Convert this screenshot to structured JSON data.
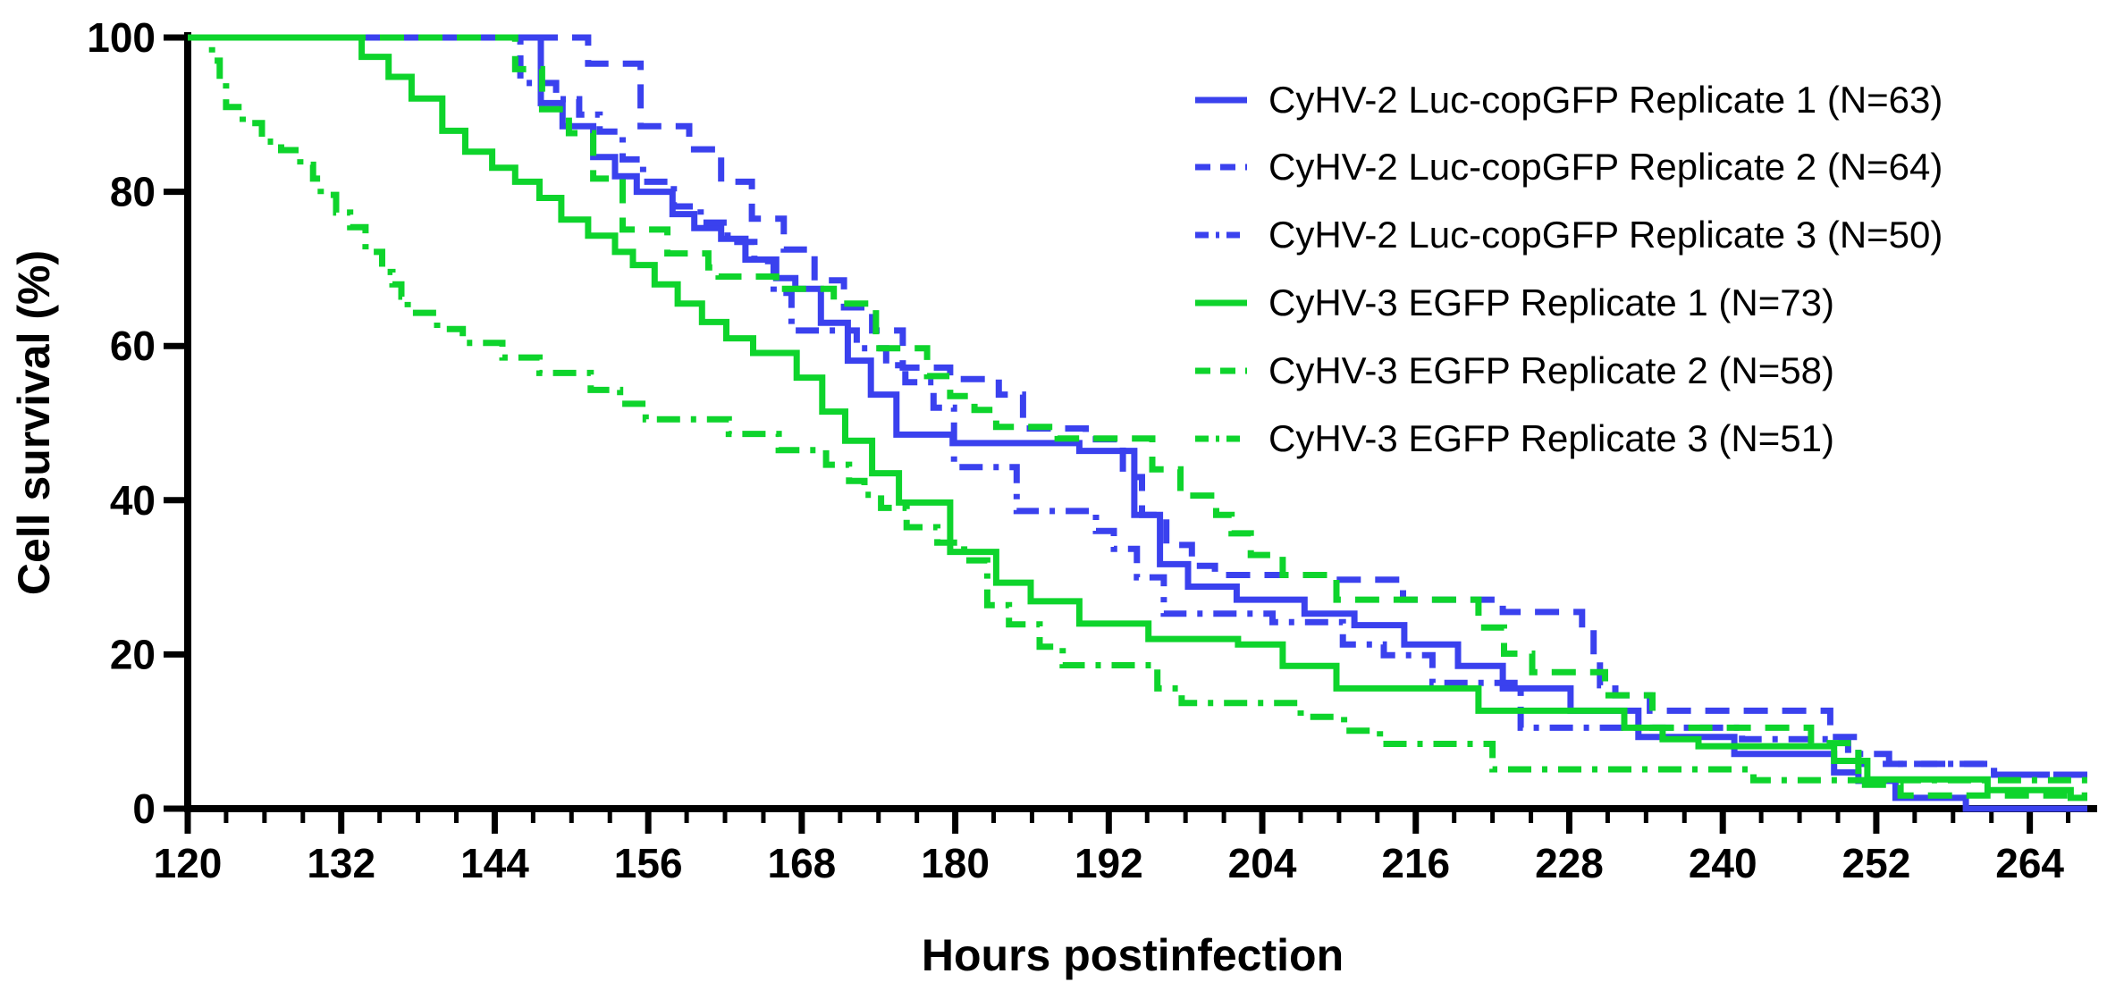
{
  "chart_data": {
    "type": "line",
    "variant": "kaplan_meier_step_survival",
    "title": "",
    "xlabel": "Hours postinfection",
    "ylabel": "Cell survival (%)",
    "x_range": [
      120,
      268.5
    ],
    "y_range": [
      0,
      100
    ],
    "x_ticks_major": [
      120,
      132,
      144,
      156,
      168,
      180,
      192,
      204,
      216,
      228,
      240,
      252,
      264
    ],
    "x_minor_tick_step": 3,
    "y_ticks": [
      0,
      20,
      40,
      60,
      80,
      100
    ],
    "grid": false,
    "legend_position": "inside-upper-right",
    "colors": {
      "cyhv2": "#3a41ee",
      "cyhv3": "#0ed42c",
      "axis": "#000000",
      "background": "#ffffff"
    },
    "series": [
      {
        "name": "CyHV-2 Luc-copGFP Replicate 1 (N=63)",
        "group": "CyHV-2 Luc-copGFP",
        "replicate": 1,
        "n": 63,
        "color_key": "cyhv2",
        "line_style": "solid",
        "points": [
          [
            120,
            100
          ],
          [
            147.6,
            91.5
          ],
          [
            149.3,
            88.5
          ],
          [
            151.7,
            84.5
          ],
          [
            153.4,
            82
          ],
          [
            155.1,
            80
          ],
          [
            157.9,
            77.1
          ],
          [
            159.6,
            75.3
          ],
          [
            161.7,
            73.9
          ],
          [
            163.6,
            71.2
          ],
          [
            166,
            68.8
          ],
          [
            167.5,
            67.4
          ],
          [
            169.5,
            63
          ],
          [
            171.6,
            58.1
          ],
          [
            173.4,
            53.7
          ],
          [
            175.4,
            48.5
          ],
          [
            179.8,
            47.4
          ],
          [
            189.7,
            46.4
          ],
          [
            194,
            38.1
          ],
          [
            196,
            31.7
          ],
          [
            198.2,
            28.8
          ],
          [
            202,
            27.1
          ],
          [
            207.3,
            25.3
          ],
          [
            211.2,
            23.8
          ],
          [
            215.1,
            21.3
          ],
          [
            219.3,
            18.5
          ],
          [
            222.8,
            15.6
          ],
          [
            228.1,
            12.7
          ],
          [
            233.4,
            9.3
          ],
          [
            240.9,
            7.1
          ],
          [
            248.7,
            4.7
          ],
          [
            250.6,
            3.6
          ],
          [
            253.5,
            1.4
          ],
          [
            259,
            0
          ],
          [
            268.5,
            0
          ]
        ]
      },
      {
        "name": "CyHV-2 Luc-copGFP Replicate 2 (N=64)",
        "group": "CyHV-2 Luc-copGFP",
        "replicate": 2,
        "n": 64,
        "color_key": "cyhv2",
        "line_style": "dashed",
        "points": [
          [
            120,
            100
          ],
          [
            151.3,
            96.6
          ],
          [
            155.4,
            88.5
          ],
          [
            159.2,
            85.5
          ],
          [
            161.7,
            81.3
          ],
          [
            164.1,
            76.5
          ],
          [
            166.6,
            72.5
          ],
          [
            169,
            68.5
          ],
          [
            171.3,
            65
          ],
          [
            173.5,
            62
          ],
          [
            175.9,
            57.2
          ],
          [
            179.6,
            55.7
          ],
          [
            183.4,
            53.7
          ],
          [
            185.3,
            49.3
          ],
          [
            190.2,
            47.9
          ],
          [
            193.1,
            43
          ],
          [
            194.6,
            38.1
          ],
          [
            196.5,
            34.2
          ],
          [
            198.5,
            31.5
          ],
          [
            200.3,
            30.3
          ],
          [
            209.8,
            29.7
          ],
          [
            215,
            27.1
          ],
          [
            222.8,
            25.5
          ],
          [
            229,
            23.9
          ],
          [
            229.9,
            19.8
          ],
          [
            230.4,
            16
          ],
          [
            231.6,
            14.7
          ],
          [
            234.3,
            12.7
          ],
          [
            248.4,
            9.3
          ],
          [
            250.6,
            5.8
          ],
          [
            261.2,
            4.4
          ],
          [
            268.5,
            4.4
          ]
        ]
      },
      {
        "name": "CyHV-2 Luc-copGFP Replicate 3 (N=50)",
        "group": "CyHV-2 Luc-copGFP",
        "replicate": 3,
        "n": 50,
        "color_key": "cyhv2",
        "line_style": "dashdot",
        "points": [
          [
            120,
            100
          ],
          [
            146,
            94.1
          ],
          [
            148.8,
            92
          ],
          [
            150.6,
            90
          ],
          [
            152.2,
            87.8
          ],
          [
            154,
            84.2
          ],
          [
            155.6,
            81.3
          ],
          [
            158,
            78.1
          ],
          [
            160.1,
            76
          ],
          [
            162.2,
            73.5
          ],
          [
            164.3,
            71
          ],
          [
            165.8,
            66.9
          ],
          [
            167.2,
            62
          ],
          [
            172.3,
            59.7
          ],
          [
            174.6,
            57.5
          ],
          [
            176.1,
            55.3
          ],
          [
            178.3,
            52
          ],
          [
            179.9,
            44.3
          ],
          [
            184.8,
            38.6
          ],
          [
            191,
            36
          ],
          [
            192.4,
            33.7
          ],
          [
            194.2,
            30
          ],
          [
            196.3,
            25.3
          ],
          [
            204.8,
            24.2
          ],
          [
            210.3,
            21.3
          ],
          [
            213.5,
            19.9
          ],
          [
            217.3,
            16.3
          ],
          [
            224.2,
            10.5
          ],
          [
            241.5,
            9
          ],
          [
            249.8,
            7.1
          ],
          [
            253,
            5.8
          ],
          [
            261.2,
            4.4
          ],
          [
            268.5,
            4.4
          ]
        ]
      },
      {
        "name": "CyHV-3 EGFP Replicate 1 (N=73)",
        "group": "CyHV-3 EGFP",
        "replicate": 1,
        "n": 73,
        "color_key": "cyhv3",
        "line_style": "solid",
        "points": [
          [
            120,
            100
          ],
          [
            133.6,
            97.5
          ],
          [
            135.7,
            94.9
          ],
          [
            137.5,
            92.1
          ],
          [
            139.9,
            87.9
          ],
          [
            141.7,
            85.2
          ],
          [
            143.8,
            83.1
          ],
          [
            145.6,
            81.3
          ],
          [
            147.5,
            79.2
          ],
          [
            149.2,
            76.4
          ],
          [
            151.3,
            74.3
          ],
          [
            153.4,
            72.2
          ],
          [
            154.8,
            70.5
          ],
          [
            156.5,
            68
          ],
          [
            158.3,
            65.5
          ],
          [
            160.2,
            63.1
          ],
          [
            162.1,
            61
          ],
          [
            164.2,
            59.1
          ],
          [
            167.6,
            55.9
          ],
          [
            169.6,
            51.5
          ],
          [
            171.4,
            47.7
          ],
          [
            173.5,
            43.5
          ],
          [
            175.6,
            39.7
          ],
          [
            179.6,
            33.3
          ],
          [
            183.2,
            29.3
          ],
          [
            185.9,
            26.9
          ],
          [
            189.7,
            24
          ],
          [
            195.1,
            22
          ],
          [
            202.1,
            21.3
          ],
          [
            205.6,
            18.5
          ],
          [
            209.8,
            15.6
          ],
          [
            220.9,
            12.7
          ],
          [
            232.3,
            10.5
          ],
          [
            235.3,
            9
          ],
          [
            238.1,
            8.1
          ],
          [
            248.7,
            6.2
          ],
          [
            251.3,
            3.8
          ],
          [
            260.7,
            2.4
          ],
          [
            267.2,
            1.4
          ],
          [
            268.5,
            1.4
          ]
        ]
      },
      {
        "name": "CyHV-3 EGFP Replicate 2 (N=58)",
        "group": "CyHV-3 EGFP",
        "replicate": 2,
        "n": 58,
        "color_key": "cyhv3",
        "line_style": "dashed",
        "points": [
          [
            120,
            100
          ],
          [
            145.6,
            95.9
          ],
          [
            147.7,
            90.7
          ],
          [
            149.8,
            87.6
          ],
          [
            151.7,
            81.7
          ],
          [
            154,
            75.1
          ],
          [
            157.5,
            72
          ],
          [
            160.7,
            70.2
          ],
          [
            161.5,
            69
          ],
          [
            166,
            67.4
          ],
          [
            170.5,
            65.5
          ],
          [
            173.8,
            59.7
          ],
          [
            177.8,
            56.1
          ],
          [
            179.6,
            53.5
          ],
          [
            181.5,
            51.7
          ],
          [
            183.2,
            49.5
          ],
          [
            188,
            48
          ],
          [
            195.4,
            44
          ],
          [
            197.6,
            40.6
          ],
          [
            200.4,
            38.1
          ],
          [
            201.6,
            35.7
          ],
          [
            203.1,
            32.9
          ],
          [
            205.6,
            30.3
          ],
          [
            209.8,
            27.1
          ],
          [
            220.9,
            23.5
          ],
          [
            222.9,
            20.1
          ],
          [
            225.1,
            17.7
          ],
          [
            230.8,
            14.7
          ],
          [
            234.5,
            10.5
          ],
          [
            246.9,
            8.5
          ],
          [
            250.6,
            3.1
          ],
          [
            253.9,
            1.7
          ],
          [
            268.5,
            1.7
          ]
        ]
      },
      {
        "name": "CyHV-3 EGFP Replicate 3 (N=51)",
        "group": "CyHV-3 EGFP",
        "replicate": 3,
        "n": 51,
        "color_key": "cyhv3",
        "line_style": "dashdot",
        "points": [
          [
            120,
            100
          ],
          [
            121.9,
            97
          ],
          [
            122.5,
            94.5
          ],
          [
            123,
            91
          ],
          [
            124.3,
            88.9
          ],
          [
            125.8,
            86.5
          ],
          [
            127.3,
            85.4
          ],
          [
            128.8,
            83.5
          ],
          [
            129.8,
            81.7
          ],
          [
            130.4,
            79.6
          ],
          [
            131.6,
            77.3
          ],
          [
            132.7,
            75.4
          ],
          [
            133.9,
            72.2
          ],
          [
            135.2,
            69.6
          ],
          [
            136,
            68
          ],
          [
            136.7,
            66.4
          ],
          [
            137.2,
            64.3
          ],
          [
            139.5,
            62.2
          ],
          [
            141.5,
            60.4
          ],
          [
            144.6,
            58.5
          ],
          [
            147.5,
            56.5
          ],
          [
            151.5,
            54.3
          ],
          [
            153.8,
            52.5
          ],
          [
            155.8,
            50.5
          ],
          [
            162.3,
            48.6
          ],
          [
            166.2,
            46.5
          ],
          [
            169.9,
            44.6
          ],
          [
            171.7,
            42.5
          ],
          [
            172.9,
            40.7
          ],
          [
            174.2,
            39
          ],
          [
            176.2,
            36.5
          ],
          [
            178.6,
            34.5
          ],
          [
            180.7,
            32.2
          ],
          [
            182.5,
            26.4
          ],
          [
            184.2,
            23.9
          ],
          [
            186.6,
            21
          ],
          [
            188.4,
            18.6
          ],
          [
            195.8,
            15.6
          ],
          [
            197.7,
            13.7
          ],
          [
            207,
            11.9
          ],
          [
            210.4,
            10.1
          ],
          [
            213.2,
            8.4
          ],
          [
            222,
            5.1
          ],
          [
            242.4,
            3.7
          ],
          [
            268.5,
            3.5
          ]
        ]
      }
    ]
  }
}
